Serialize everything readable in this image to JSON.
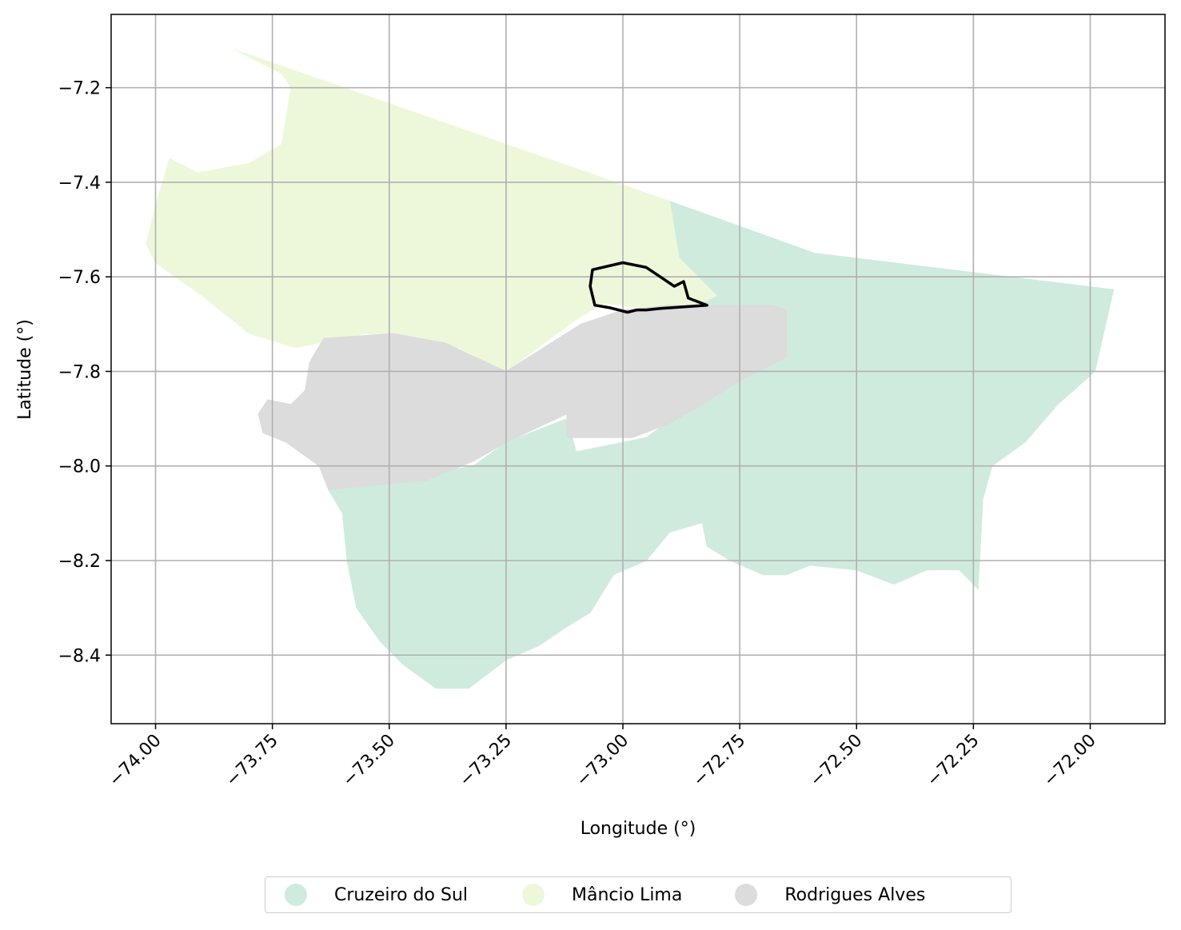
{
  "chart_data": {
    "type": "map",
    "xlabel": "Longitude (°)",
    "ylabel": "Latitude (°)",
    "xlim": [
      -74.095,
      -71.84
    ],
    "ylim": [
      -8.545,
      -7.045
    ],
    "xticks": [
      -74.0,
      -73.75,
      -73.5,
      -73.25,
      -73.0,
      -72.75,
      -72.5,
      -72.25,
      -72.0
    ],
    "xtick_labels": [
      "−74.00",
      "−73.75",
      "−73.50",
      "−73.25",
      "−73.00",
      "−72.75",
      "−72.50",
      "−72.25",
      "−72.00"
    ],
    "yticks": [
      -7.2,
      -7.4,
      -7.6,
      -7.8,
      -8.0,
      -8.2,
      -8.4
    ],
    "ytick_labels": [
      "−7.2",
      "−7.4",
      "−7.6",
      "−7.8",
      "−8.0",
      "−8.2",
      "−8.4"
    ],
    "grid": true,
    "legend_position": "bottom-center",
    "regions": [
      {
        "name": "Cruzeiro do Sul",
        "color": "#cfebdd",
        "outline": [
          [
            -72.9,
            -7.44
          ],
          [
            -72.59,
            -7.55
          ],
          [
            -71.95,
            -7.627
          ],
          [
            -71.99,
            -7.8
          ],
          [
            -72.07,
            -7.87
          ],
          [
            -72.14,
            -7.95
          ],
          [
            -72.21,
            -8.0
          ],
          [
            -72.23,
            -8.07
          ],
          [
            -72.24,
            -8.26
          ],
          [
            -72.28,
            -8.22
          ],
          [
            -72.35,
            -8.22
          ],
          [
            -72.42,
            -8.25
          ],
          [
            -72.5,
            -8.22
          ],
          [
            -72.6,
            -8.21
          ],
          [
            -72.65,
            -8.23
          ],
          [
            -72.7,
            -8.23
          ],
          [
            -72.77,
            -8.2
          ],
          [
            -72.82,
            -8.17
          ],
          [
            -72.83,
            -8.12
          ],
          [
            -72.9,
            -8.14
          ],
          [
            -72.95,
            -8.2
          ],
          [
            -73.02,
            -8.23
          ],
          [
            -73.07,
            -8.31
          ],
          [
            -73.12,
            -8.34
          ],
          [
            -73.18,
            -8.38
          ],
          [
            -73.25,
            -8.41
          ],
          [
            -73.33,
            -8.47
          ],
          [
            -73.4,
            -8.47
          ],
          [
            -73.47,
            -8.42
          ],
          [
            -73.52,
            -8.37
          ],
          [
            -73.57,
            -8.3
          ],
          [
            -73.59,
            -8.2
          ],
          [
            -73.6,
            -8.1
          ],
          [
            -73.63,
            -8.05
          ],
          [
            -73.44,
            -8.02
          ],
          [
            -73.32,
            -8.0
          ],
          [
            -73.25,
            -7.95
          ],
          [
            -73.12,
            -7.9
          ],
          [
            -73.1,
            -7.97
          ],
          [
            -72.95,
            -7.94
          ],
          [
            -72.88,
            -7.89
          ],
          [
            -72.78,
            -7.82
          ],
          [
            -72.65,
            -7.77
          ],
          [
            -72.66,
            -7.68
          ],
          [
            -72.8,
            -7.7
          ],
          [
            -72.85,
            -7.63
          ],
          [
            -72.88,
            -7.56
          ]
        ]
      },
      {
        "name": "Mâncio Lima",
        "color": "#edf8da",
        "outline": [
          [
            -73.83,
            -7.12
          ],
          [
            -72.9,
            -7.44
          ],
          [
            -72.88,
            -7.56
          ],
          [
            -72.8,
            -7.64
          ],
          [
            -72.84,
            -7.66
          ],
          [
            -72.93,
            -7.67
          ],
          [
            -73.04,
            -7.655
          ],
          [
            -73.1,
            -7.69
          ],
          [
            -73.25,
            -7.8
          ],
          [
            -73.35,
            -7.75
          ],
          [
            -73.45,
            -7.73
          ],
          [
            -73.55,
            -7.72
          ],
          [
            -73.7,
            -7.75
          ],
          [
            -73.8,
            -7.72
          ],
          [
            -73.9,
            -7.64
          ],
          [
            -74.0,
            -7.57
          ],
          [
            -74.02,
            -7.53
          ],
          [
            -74.0,
            -7.45
          ],
          [
            -73.97,
            -7.35
          ],
          [
            -73.91,
            -7.38
          ],
          [
            -73.8,
            -7.36
          ],
          [
            -73.73,
            -7.32
          ],
          [
            -73.71,
            -7.2
          ],
          [
            -73.73,
            -7.17
          ]
        ]
      },
      {
        "name": "Rodrigues Alves",
        "color": "#dcdcdc",
        "outline": [
          [
            -73.64,
            -7.73
          ],
          [
            -73.49,
            -7.72
          ],
          [
            -73.38,
            -7.74
          ],
          [
            -73.25,
            -7.8
          ],
          [
            -73.09,
            -7.7
          ],
          [
            -73.0,
            -7.67
          ],
          [
            -72.9,
            -7.66
          ],
          [
            -72.85,
            -7.66
          ],
          [
            -72.68,
            -7.66
          ],
          [
            -72.65,
            -7.67
          ],
          [
            -72.65,
            -7.77
          ],
          [
            -72.75,
            -7.82
          ],
          [
            -72.83,
            -7.87
          ],
          [
            -72.9,
            -7.91
          ],
          [
            -72.98,
            -7.94
          ],
          [
            -73.12,
            -7.94
          ],
          [
            -73.12,
            -7.89
          ],
          [
            -73.25,
            -7.95
          ],
          [
            -73.32,
            -7.99
          ],
          [
            -73.42,
            -8.03
          ],
          [
            -73.63,
            -8.05
          ],
          [
            -73.65,
            -8.0
          ],
          [
            -73.72,
            -7.95
          ],
          [
            -73.77,
            -7.93
          ],
          [
            -73.78,
            -7.89
          ],
          [
            -73.76,
            -7.86
          ],
          [
            -73.71,
            -7.87
          ],
          [
            -73.68,
            -7.84
          ],
          [
            -73.67,
            -7.78
          ]
        ]
      }
    ],
    "highlight_outline": [
      [
        -73.065,
        -7.585
      ],
      [
        -73.0,
        -7.57
      ],
      [
        -72.95,
        -7.58
      ],
      [
        -72.92,
        -7.6
      ],
      [
        -72.89,
        -7.62
      ],
      [
        -72.87,
        -7.61
      ],
      [
        -72.86,
        -7.645
      ],
      [
        -72.82,
        -7.66
      ],
      [
        -72.92,
        -7.667
      ],
      [
        -72.95,
        -7.67
      ],
      [
        -72.97,
        -7.67
      ],
      [
        -72.99,
        -7.675
      ],
      [
        -73.03,
        -7.665
      ],
      [
        -73.06,
        -7.66
      ],
      [
        -73.07,
        -7.62
      ]
    ]
  },
  "legend": {
    "items": [
      {
        "label": "Cruzeiro do Sul",
        "color": "#cfebdd"
      },
      {
        "label": "Mâncio Lima",
        "color": "#edf8da"
      },
      {
        "label": "Rodrigues Alves",
        "color": "#dcdcdc"
      }
    ]
  }
}
